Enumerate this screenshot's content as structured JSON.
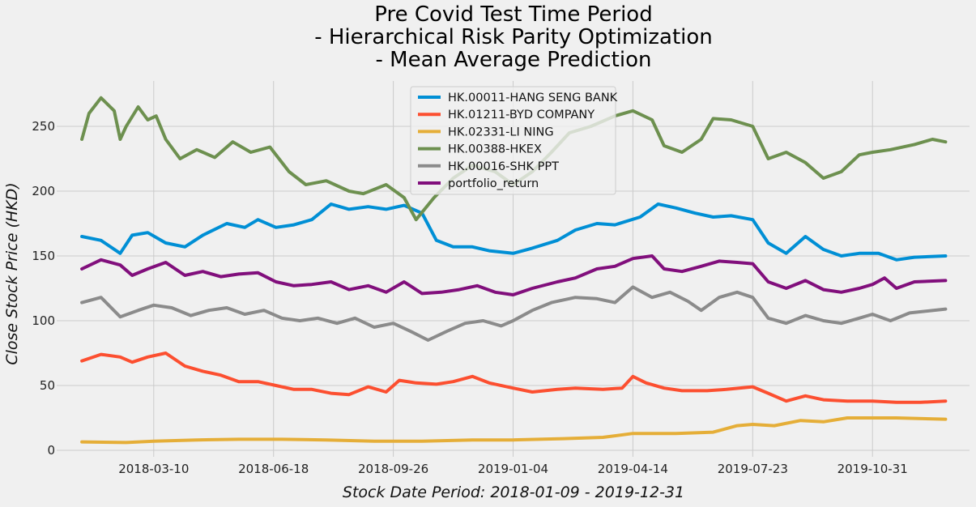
{
  "chart_data": {
    "type": "line",
    "title": [
      "Pre Covid Test Time Period",
      "- Hierarchical Risk Parity Optimization",
      "- Mean Average Prediction"
    ],
    "xlabel": "Stock Date Period: 2018-01-09 - 2019-12-31",
    "ylabel": "Close Stock Price (HKD)",
    "x_range": [
      "2018-01-09",
      "2019-12-31"
    ],
    "xlim": [
      "2017-12-19",
      "2020-01-20"
    ],
    "ylim": [
      -5,
      285
    ],
    "x_ticks": [
      "2018-03-10",
      "2018-06-18",
      "2018-09-26",
      "2019-01-04",
      "2019-04-14",
      "2019-07-23",
      "2019-10-31"
    ],
    "y_ticks": [
      0,
      50,
      100,
      150,
      200,
      250
    ],
    "grid": true,
    "legend_position": "top-center",
    "series": [
      {
        "name": "HK.00011-HANG SENG BANK",
        "color": "#008fd5",
        "points": [
          [
            "2018-01-09",
            165
          ],
          [
            "2018-01-25",
            162
          ],
          [
            "2018-02-10",
            152
          ],
          [
            "2018-02-20",
            166
          ],
          [
            "2018-03-05",
            168
          ],
          [
            "2018-03-20",
            160
          ],
          [
            "2018-04-05",
            157
          ],
          [
            "2018-04-20",
            166
          ],
          [
            "2018-05-10",
            175
          ],
          [
            "2018-05-25",
            172
          ],
          [
            "2018-06-05",
            178
          ],
          [
            "2018-06-20",
            172
          ],
          [
            "2018-07-05",
            174
          ],
          [
            "2018-07-20",
            178
          ],
          [
            "2018-08-05",
            190
          ],
          [
            "2018-08-20",
            186
          ],
          [
            "2018-09-05",
            188
          ],
          [
            "2018-09-20",
            186
          ],
          [
            "2018-10-05",
            189
          ],
          [
            "2018-10-20",
            183
          ],
          [
            "2018-11-01",
            162
          ],
          [
            "2018-11-15",
            157
          ],
          [
            "2018-12-01",
            157
          ],
          [
            "2018-12-15",
            154
          ],
          [
            "2019-01-04",
            152
          ],
          [
            "2019-01-20",
            156
          ],
          [
            "2019-02-10",
            162
          ],
          [
            "2019-02-25",
            170
          ],
          [
            "2019-03-15",
            175
          ],
          [
            "2019-03-30",
            174
          ],
          [
            "2019-04-20",
            180
          ],
          [
            "2019-05-05",
            190
          ],
          [
            "2019-05-20",
            187
          ],
          [
            "2019-06-05",
            183
          ],
          [
            "2019-06-20",
            180
          ],
          [
            "2019-07-05",
            181
          ],
          [
            "2019-07-23",
            178
          ],
          [
            "2019-08-05",
            160
          ],
          [
            "2019-08-20",
            152
          ],
          [
            "2019-09-05",
            165
          ],
          [
            "2019-09-20",
            155
          ],
          [
            "2019-10-05",
            150
          ],
          [
            "2019-10-20",
            152
          ],
          [
            "2019-11-05",
            152
          ],
          [
            "2019-11-20",
            147
          ],
          [
            "2019-12-05",
            149
          ],
          [
            "2019-12-31",
            150
          ]
        ]
      },
      {
        "name": "HK.01211-BYD COMPANY",
        "color": "#fc4f30",
        "points": [
          [
            "2018-01-09",
            69
          ],
          [
            "2018-01-25",
            74
          ],
          [
            "2018-02-10",
            72
          ],
          [
            "2018-02-20",
            68
          ],
          [
            "2018-03-05",
            72
          ],
          [
            "2018-03-20",
            75
          ],
          [
            "2018-04-05",
            65
          ],
          [
            "2018-04-20",
            61
          ],
          [
            "2018-05-05",
            58
          ],
          [
            "2018-05-20",
            53
          ],
          [
            "2018-06-05",
            53
          ],
          [
            "2018-06-20",
            50
          ],
          [
            "2018-07-05",
            47
          ],
          [
            "2018-07-20",
            47
          ],
          [
            "2018-08-05",
            44
          ],
          [
            "2018-08-20",
            43
          ],
          [
            "2018-09-05",
            49
          ],
          [
            "2018-09-20",
            45
          ],
          [
            "2018-10-01",
            54
          ],
          [
            "2018-10-15",
            52
          ],
          [
            "2018-11-01",
            51
          ],
          [
            "2018-11-15",
            53
          ],
          [
            "2018-12-01",
            57
          ],
          [
            "2018-12-15",
            52
          ],
          [
            "2019-01-04",
            48
          ],
          [
            "2019-01-20",
            45
          ],
          [
            "2019-02-10",
            47
          ],
          [
            "2019-02-25",
            48
          ],
          [
            "2019-03-20",
            47
          ],
          [
            "2019-04-05",
            48
          ],
          [
            "2019-04-14",
            57
          ],
          [
            "2019-04-25",
            52
          ],
          [
            "2019-05-10",
            48
          ],
          [
            "2019-05-25",
            46
          ],
          [
            "2019-06-15",
            46
          ],
          [
            "2019-07-01",
            47
          ],
          [
            "2019-07-23",
            49
          ],
          [
            "2019-08-05",
            44
          ],
          [
            "2019-08-20",
            38
          ],
          [
            "2019-09-05",
            42
          ],
          [
            "2019-09-20",
            39
          ],
          [
            "2019-10-10",
            38
          ],
          [
            "2019-10-31",
            38
          ],
          [
            "2019-11-20",
            37
          ],
          [
            "2019-12-10",
            37
          ],
          [
            "2019-12-31",
            38
          ]
        ]
      },
      {
        "name": "HK.02331-LI NING",
        "color": "#e5ae38",
        "points": [
          [
            "2018-01-09",
            6.5
          ],
          [
            "2018-02-15",
            6
          ],
          [
            "2018-03-10",
            7
          ],
          [
            "2018-04-15",
            8
          ],
          [
            "2018-05-20",
            8.5
          ],
          [
            "2018-06-25",
            8.5
          ],
          [
            "2018-08-01",
            8
          ],
          [
            "2018-09-10",
            7
          ],
          [
            "2018-10-20",
            7
          ],
          [
            "2018-12-01",
            8
          ],
          [
            "2019-01-04",
            8
          ],
          [
            "2019-02-15",
            9
          ],
          [
            "2019-03-20",
            10
          ],
          [
            "2019-04-14",
            13
          ],
          [
            "2019-05-20",
            13
          ],
          [
            "2019-06-20",
            14
          ],
          [
            "2019-07-10",
            19
          ],
          [
            "2019-07-23",
            20
          ],
          [
            "2019-08-10",
            19
          ],
          [
            "2019-09-01",
            23
          ],
          [
            "2019-09-20",
            22
          ],
          [
            "2019-10-10",
            25
          ],
          [
            "2019-10-31",
            25
          ],
          [
            "2019-11-20",
            25
          ],
          [
            "2019-12-31",
            24
          ]
        ]
      },
      {
        "name": "HK.00388-HKEX",
        "color": "#6d904f",
        "points": [
          [
            "2018-01-09",
            240
          ],
          [
            "2018-01-15",
            260
          ],
          [
            "2018-01-25",
            272
          ],
          [
            "2018-02-05",
            262
          ],
          [
            "2018-02-10",
            240
          ],
          [
            "2018-02-15",
            250
          ],
          [
            "2018-02-25",
            265
          ],
          [
            "2018-03-05",
            255
          ],
          [
            "2018-03-12",
            258
          ],
          [
            "2018-03-20",
            240
          ],
          [
            "2018-04-01",
            225
          ],
          [
            "2018-04-15",
            232
          ],
          [
            "2018-04-30",
            226
          ],
          [
            "2018-05-15",
            238
          ],
          [
            "2018-05-30",
            230
          ],
          [
            "2018-06-15",
            234
          ],
          [
            "2018-07-01",
            215
          ],
          [
            "2018-07-15",
            205
          ],
          [
            "2018-08-01",
            208
          ],
          [
            "2018-08-20",
            200
          ],
          [
            "2018-09-01",
            198
          ],
          [
            "2018-09-20",
            205
          ],
          [
            "2018-10-05",
            195
          ],
          [
            "2018-10-15",
            178
          ],
          [
            "2018-10-30",
            195
          ],
          [
            "2018-11-15",
            210
          ],
          [
            "2018-12-01",
            220
          ],
          [
            "2018-12-20",
            215
          ],
          [
            "2019-01-04",
            205
          ],
          [
            "2019-01-20",
            215
          ],
          [
            "2019-02-05",
            230
          ],
          [
            "2019-02-20",
            245
          ],
          [
            "2019-03-10",
            250
          ],
          [
            "2019-03-30",
            258
          ],
          [
            "2019-04-14",
            262
          ],
          [
            "2019-04-30",
            255
          ],
          [
            "2019-05-10",
            235
          ],
          [
            "2019-05-25",
            230
          ],
          [
            "2019-06-10",
            240
          ],
          [
            "2019-06-20",
            256
          ],
          [
            "2019-07-05",
            255
          ],
          [
            "2019-07-23",
            250
          ],
          [
            "2019-08-05",
            225
          ],
          [
            "2019-08-20",
            230
          ],
          [
            "2019-09-05",
            222
          ],
          [
            "2019-09-20",
            210
          ],
          [
            "2019-10-05",
            215
          ],
          [
            "2019-10-20",
            228
          ],
          [
            "2019-10-31",
            230
          ],
          [
            "2019-11-15",
            232
          ],
          [
            "2019-12-05",
            236
          ],
          [
            "2019-12-20",
            240
          ],
          [
            "2019-12-31",
            238
          ]
        ]
      },
      {
        "name": "HK.00016-SHK PPT",
        "color": "#8b8b8b",
        "points": [
          [
            "2018-01-09",
            114
          ],
          [
            "2018-01-25",
            118
          ],
          [
            "2018-02-10",
            103
          ],
          [
            "2018-02-25",
            108
          ],
          [
            "2018-03-10",
            112
          ],
          [
            "2018-03-25",
            110
          ],
          [
            "2018-04-10",
            104
          ],
          [
            "2018-04-25",
            108
          ],
          [
            "2018-05-10",
            110
          ],
          [
            "2018-05-25",
            105
          ],
          [
            "2018-06-10",
            108
          ],
          [
            "2018-06-25",
            102
          ],
          [
            "2018-07-10",
            100
          ],
          [
            "2018-07-25",
            102
          ],
          [
            "2018-08-10",
            98
          ],
          [
            "2018-08-25",
            102
          ],
          [
            "2018-09-10",
            95
          ],
          [
            "2018-09-26",
            98
          ],
          [
            "2018-10-10",
            92
          ],
          [
            "2018-10-25",
            85
          ],
          [
            "2018-11-10",
            92
          ],
          [
            "2018-11-25",
            98
          ],
          [
            "2018-12-10",
            100
          ],
          [
            "2018-12-25",
            96
          ],
          [
            "2019-01-04",
            100
          ],
          [
            "2019-01-20",
            108
          ],
          [
            "2019-02-05",
            114
          ],
          [
            "2019-02-25",
            118
          ],
          [
            "2019-03-15",
            117
          ],
          [
            "2019-03-30",
            114
          ],
          [
            "2019-04-14",
            126
          ],
          [
            "2019-04-30",
            118
          ],
          [
            "2019-05-15",
            122
          ],
          [
            "2019-05-30",
            115
          ],
          [
            "2019-06-10",
            108
          ],
          [
            "2019-06-25",
            118
          ],
          [
            "2019-07-10",
            122
          ],
          [
            "2019-07-23",
            118
          ],
          [
            "2019-08-05",
            102
          ],
          [
            "2019-08-20",
            98
          ],
          [
            "2019-09-05",
            104
          ],
          [
            "2019-09-20",
            100
          ],
          [
            "2019-10-05",
            98
          ],
          [
            "2019-10-20",
            102
          ],
          [
            "2019-10-31",
            105
          ],
          [
            "2019-11-15",
            100
          ],
          [
            "2019-12-01",
            106
          ],
          [
            "2019-12-31",
            109
          ]
        ]
      },
      {
        "name": "portfolio_return",
        "color": "#810f7c",
        "points": [
          [
            "2018-01-09",
            140
          ],
          [
            "2018-01-25",
            147
          ],
          [
            "2018-02-10",
            143
          ],
          [
            "2018-02-20",
            135
          ],
          [
            "2018-03-05",
            140
          ],
          [
            "2018-03-20",
            145
          ],
          [
            "2018-04-05",
            135
          ],
          [
            "2018-04-20",
            138
          ],
          [
            "2018-05-05",
            134
          ],
          [
            "2018-05-20",
            136
          ],
          [
            "2018-06-05",
            137
          ],
          [
            "2018-06-20",
            130
          ],
          [
            "2018-07-05",
            127
          ],
          [
            "2018-07-20",
            128
          ],
          [
            "2018-08-05",
            130
          ],
          [
            "2018-08-20",
            124
          ],
          [
            "2018-09-05",
            127
          ],
          [
            "2018-09-20",
            122
          ],
          [
            "2018-10-05",
            130
          ],
          [
            "2018-10-20",
            121
          ],
          [
            "2018-11-05",
            122
          ],
          [
            "2018-11-20",
            124
          ],
          [
            "2018-12-05",
            127
          ],
          [
            "2018-12-20",
            122
          ],
          [
            "2019-01-04",
            120
          ],
          [
            "2019-01-20",
            125
          ],
          [
            "2019-02-10",
            130
          ],
          [
            "2019-02-25",
            133
          ],
          [
            "2019-03-15",
            140
          ],
          [
            "2019-03-30",
            142
          ],
          [
            "2019-04-14",
            148
          ],
          [
            "2019-04-30",
            150
          ],
          [
            "2019-05-10",
            140
          ],
          [
            "2019-05-25",
            138
          ],
          [
            "2019-06-10",
            142
          ],
          [
            "2019-06-25",
            146
          ],
          [
            "2019-07-10",
            145
          ],
          [
            "2019-07-23",
            144
          ],
          [
            "2019-08-05",
            130
          ],
          [
            "2019-08-20",
            125
          ],
          [
            "2019-09-05",
            131
          ],
          [
            "2019-09-20",
            124
          ],
          [
            "2019-10-05",
            122
          ],
          [
            "2019-10-20",
            125
          ],
          [
            "2019-10-31",
            128
          ],
          [
            "2019-11-10",
            133
          ],
          [
            "2019-11-20",
            125
          ],
          [
            "2019-12-05",
            130
          ],
          [
            "2019-12-31",
            131
          ]
        ]
      }
    ]
  }
}
